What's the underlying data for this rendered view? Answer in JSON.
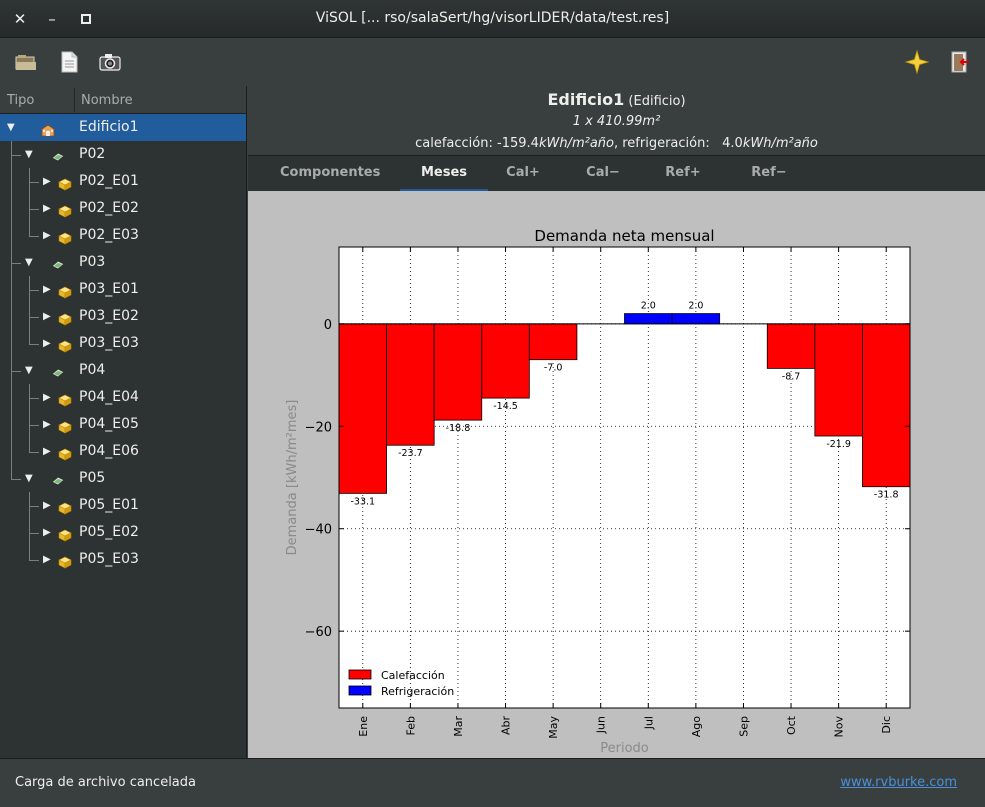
{
  "window": {
    "title": "ViSOL [... rso/salaSert/hg/visorLIDER/data/test.res]"
  },
  "titlebar": {
    "close": "✕",
    "minimize": "–",
    "maximize": "▫"
  },
  "tree": {
    "col_tipo": "Tipo",
    "col_nombre": "Nombre",
    "rows": [
      {
        "label": "Edificio1",
        "kind": "edificio",
        "depth": 0,
        "expanded": true,
        "selected": true
      },
      {
        "label": "P02",
        "kind": "planta",
        "depth": 1,
        "expanded": true
      },
      {
        "label": "P02_E01",
        "kind": "espacio",
        "depth": 2
      },
      {
        "label": "P02_E02",
        "kind": "espacio",
        "depth": 2
      },
      {
        "label": "P02_E03",
        "kind": "espacio",
        "depth": 2,
        "last": true
      },
      {
        "label": "P03",
        "kind": "planta",
        "depth": 1,
        "expanded": true
      },
      {
        "label": "P03_E01",
        "kind": "espacio",
        "depth": 2
      },
      {
        "label": "P03_E02",
        "kind": "espacio",
        "depth": 2
      },
      {
        "label": "P03_E03",
        "kind": "espacio",
        "depth": 2,
        "last": true
      },
      {
        "label": "P04",
        "kind": "planta",
        "depth": 1,
        "expanded": true
      },
      {
        "label": "P04_E04",
        "kind": "espacio",
        "depth": 2
      },
      {
        "label": "P04_E05",
        "kind": "espacio",
        "depth": 2
      },
      {
        "label": "P04_E06",
        "kind": "espacio",
        "depth": 2,
        "last": true
      },
      {
        "label": "P05",
        "kind": "planta",
        "depth": 1,
        "expanded": true,
        "last": true
      },
      {
        "label": "P05_E01",
        "kind": "espacio",
        "depth": 2
      },
      {
        "label": "P05_E02",
        "kind": "espacio",
        "depth": 2
      },
      {
        "label": "P05_E03",
        "kind": "espacio",
        "depth": 2,
        "last": true
      }
    ]
  },
  "header": {
    "name": "Edificio1",
    "type": "(Edificio)",
    "area": "1 x 410.99m²",
    "demand_cal_label": "calefacción:",
    "demand_cal_value": "-159.4",
    "demand_unit": "kWh/m²año",
    "demand_ref_label": "refrigeración:",
    "demand_ref_value": "4.0"
  },
  "tabs": [
    "Componentes",
    "Meses",
    "Cal+",
    "Cal−",
    "Ref+",
    "Ref−"
  ],
  "active_tab": 1,
  "chart_data": {
    "type": "bar",
    "title": "Demanda neta mensual",
    "xlabel": "Periodo",
    "ylabel": "Demanda [kWh/m²mes]",
    "categories": [
      "Ene",
      "Feb",
      "Mar",
      "Abr",
      "May",
      "Jun",
      "Jul",
      "Ago",
      "Sep",
      "Oct",
      "Nov",
      "Dic"
    ],
    "series": [
      {
        "name": "Calefacción",
        "color": "#ff0000",
        "values": [
          -33.1,
          -23.7,
          -18.8,
          -14.5,
          -7.0,
          0,
          0,
          0,
          0,
          -8.7,
          -21.9,
          -31.8
        ]
      },
      {
        "name": "Refrigeración",
        "color": "#0000ff",
        "values": [
          0,
          0,
          0,
          0,
          0,
          0,
          2.0,
          2.0,
          0,
          0,
          0,
          0
        ]
      }
    ],
    "value_labels": [
      "-33.1",
      "-23.7",
      "-18.8",
      "-14.5",
      "-7.0",
      "",
      "2.0",
      "2.0",
      "",
      "-8.7",
      "-21.9",
      "-31.8"
    ],
    "yticks": [
      0,
      -20,
      -40,
      -60
    ],
    "ylim": [
      -75,
      15
    ],
    "grid": true,
    "legend": "lower-left"
  },
  "status": {
    "message": "Carga de archivo cancelada",
    "link": "www.rvburke.com"
  }
}
